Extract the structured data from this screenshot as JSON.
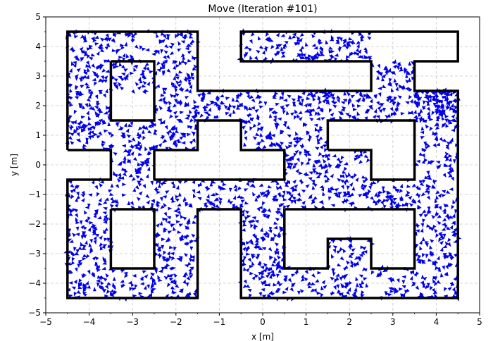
{
  "chart_data": {
    "type": "scatter",
    "title": "Move (Iteration #101)",
    "xlabel": "x [m]",
    "ylabel": "y [m]",
    "xlim": [
      -5,
      5
    ],
    "ylim": [
      -5,
      5
    ],
    "xticks": [
      -5,
      -4,
      -3,
      -2,
      -1,
      0,
      1,
      2,
      3,
      4,
      5
    ],
    "yticks": [
      -5,
      -4,
      -3,
      -2,
      -1,
      0,
      1,
      2,
      3,
      4,
      5
    ],
    "minor_ticks": 0.5,
    "grid": true,
    "marker": "arrow",
    "particle_color": "#0000ee",
    "wall_color": "#000000",
    "walls": [
      [
        [
          -4.5,
          0.5
        ],
        [
          -4.5,
          4.5
        ],
        [
          -1.5,
          4.5
        ],
        [
          -1.5,
          2.5
        ],
        [
          2.5,
          2.5
        ],
        [
          2.5,
          3.5
        ],
        [
          -0.5,
          3.5
        ],
        [
          -0.5,
          4.5
        ],
        [
          4.5,
          4.5
        ],
        [
          4.5,
          3.5
        ],
        [
          3.5,
          3.5
        ],
        [
          3.5,
          2.5
        ],
        [
          4.5,
          2.5
        ],
        [
          4.5,
          -4.5
        ],
        [
          -0.5,
          -4.5
        ],
        [
          -0.5,
          -1.5
        ],
        [
          -1.5,
          -1.5
        ],
        [
          -1.5,
          -4.5
        ],
        [
          -4.5,
          -4.5
        ],
        [
          -4.5,
          -0.5
        ],
        [
          -3.5,
          -0.5
        ],
        [
          -3.5,
          0.5
        ],
        [
          -4.5,
          0.5
        ]
      ],
      [
        [
          -3.5,
          3.5
        ],
        [
          -2.5,
          3.5
        ],
        [
          -2.5,
          1.5
        ],
        [
          -3.5,
          1.5
        ],
        [
          -3.5,
          3.5
        ]
      ],
      [
        [
          -2.5,
          -0.5
        ],
        [
          -2.5,
          0.5
        ],
        [
          -1.5,
          0.5
        ],
        [
          -1.5,
          1.5
        ],
        [
          -0.5,
          1.5
        ],
        [
          -0.5,
          0.5
        ],
        [
          0.5,
          0.5
        ],
        [
          0.5,
          -0.5
        ],
        [
          -2.5,
          -0.5
        ]
      ],
      [
        [
          1.5,
          0.5
        ],
        [
          1.5,
          1.5
        ],
        [
          3.5,
          1.5
        ],
        [
          3.5,
          -0.5
        ],
        [
          2.5,
          -0.5
        ],
        [
          2.5,
          0.5
        ],
        [
          1.5,
          0.5
        ]
      ],
      [
        [
          -3.5,
          -1.5
        ],
        [
          -2.5,
          -1.5
        ],
        [
          -2.5,
          -3.5
        ],
        [
          -3.5,
          -3.5
        ],
        [
          -3.5,
          -1.5
        ]
      ],
      [
        [
          0.5,
          -1.5
        ],
        [
          3.5,
          -1.5
        ],
        [
          3.5,
          -3.5
        ],
        [
          2.5,
          -3.5
        ],
        [
          2.5,
          -2.5
        ],
        [
          1.5,
          -2.5
        ],
        [
          1.5,
          -3.5
        ],
        [
          0.5,
          -3.5
        ],
        [
          0.5,
          -1.5
        ]
      ]
    ],
    "free_regions": [
      [
        -4.5,
        -1.5,
        2.5,
        4.5
      ],
      [
        -0.5,
        2.5,
        3.5,
        4.5
      ],
      [
        2.5,
        3.5,
        2.5,
        3.5
      ],
      [
        -4.5,
        -3.5,
        0.5,
        2.5
      ],
      [
        -2.5,
        -1.5,
        0.5,
        2.5
      ],
      [
        -3.5,
        -2.5,
        0.5,
        1.5
      ],
      [
        -3.5,
        -2.5,
        -0.5,
        0.5
      ],
      [
        -1.5,
        4.5,
        1.5,
        2.5
      ],
      [
        -0.5,
        1.5,
        0.5,
        1.5
      ],
      [
        3.5,
        4.5,
        -4.5,
        2.5
      ],
      [
        0.5,
        1.5,
        -0.5,
        0.5
      ],
      [
        0.5,
        3.5,
        -1.5,
        -0.5
      ],
      [
        1.5,
        2.5,
        -0.5,
        0.5
      ],
      [
        -4.5,
        -3.5,
        -4.5,
        -0.5
      ],
      [
        -3.5,
        -2.5,
        -1.5,
        -0.5
      ],
      [
        -2.5,
        -1.5,
        -4.5,
        -0.5
      ],
      [
        -3.5,
        -2.5,
        -4.5,
        -3.5
      ],
      [
        -1.5,
        0.5,
        -1.5,
        -0.5
      ],
      [
        -0.5,
        0.5,
        -4.5,
        -1.5
      ],
      [
        0.5,
        3.5,
        -4.5,
        -3.5
      ],
      [
        1.5,
        2.5,
        -3.5,
        -2.5
      ]
    ],
    "particle_count": 2600
  }
}
